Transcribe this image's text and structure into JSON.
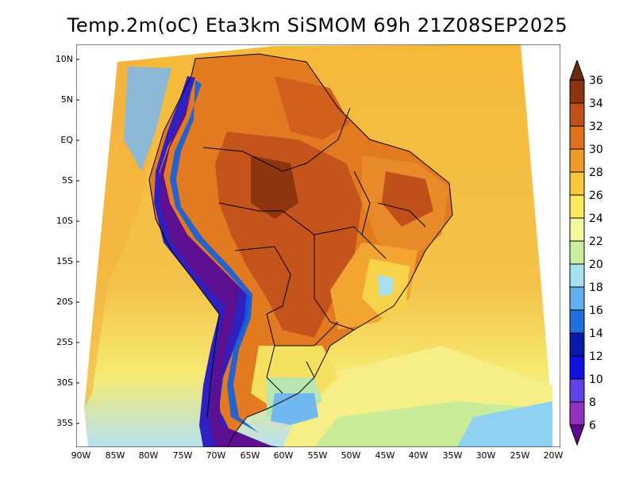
{
  "title": "Temp.2m(oC) Eta3km SiSMOM 69h 21Z08SEP2025",
  "map": {
    "lat_ticks": [
      "10N",
      "5N",
      "EQ",
      "5S",
      "10S",
      "15S",
      "20S",
      "25S",
      "30S",
      "35S"
    ],
    "lon_ticks": [
      "90W",
      "85W",
      "80W",
      "75W",
      "70W",
      "65W",
      "60W",
      "55W",
      "50W",
      "45W",
      "40W",
      "35W",
      "30W",
      "25W",
      "20W"
    ]
  },
  "colorbar": {
    "labels": [
      "36",
      "34",
      "32",
      "30",
      "28",
      "26",
      "24",
      "22",
      "20",
      "18",
      "16",
      "14",
      "12",
      "10",
      "8",
      "6"
    ],
    "colors": [
      "#6b2a0c",
      "#8b3410",
      "#c0501a",
      "#e0701e",
      "#f09a2a",
      "#f8c83c",
      "#fbe860",
      "#f4f8a0",
      "#c8f0a0",
      "#a8e0f0",
      "#60b0f0",
      "#2070e0",
      "#0818a8",
      "#1010e0",
      "#6040e8",
      "#9030c0",
      "#5a0a8a"
    ]
  }
}
